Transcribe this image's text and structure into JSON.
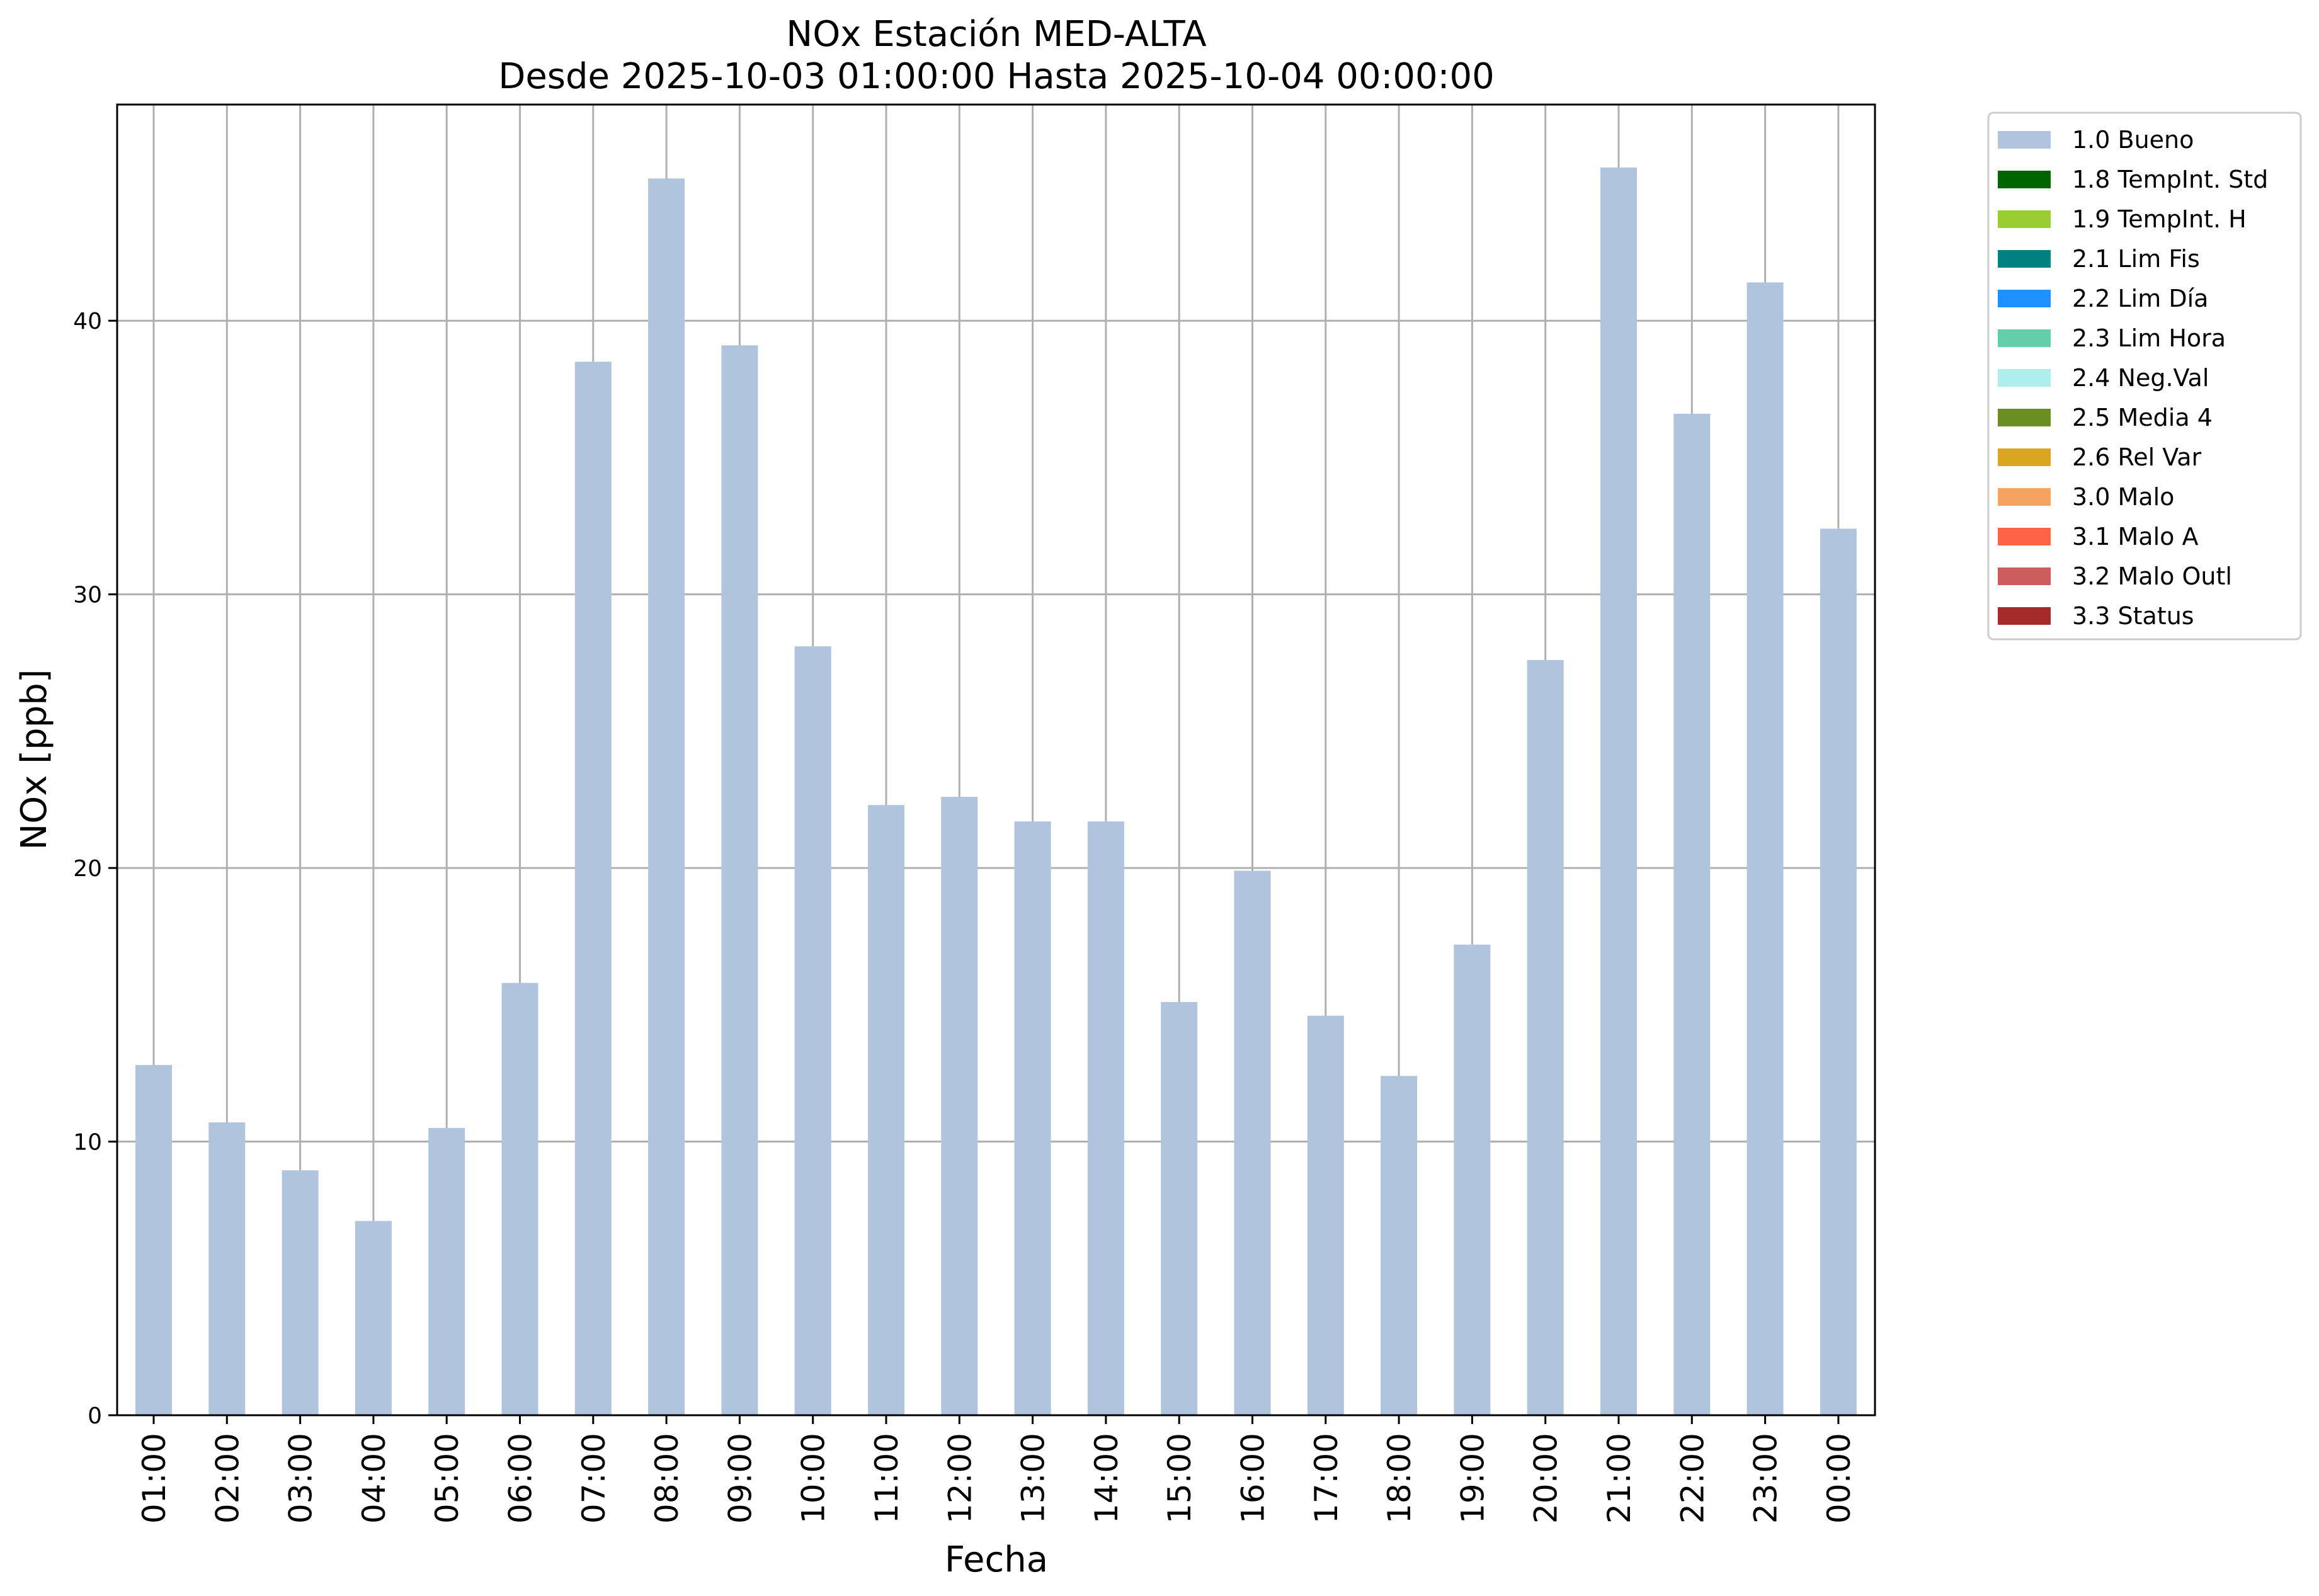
{
  "chart_data": {
    "type": "bar",
    "title": "NOx Estación MED-ALTA",
    "subtitle": "Desde 2025-10-03 01:00:00 Hasta 2025-10-04 00:00:00",
    "xlabel": "Fecha",
    "ylabel": "NOx [ppb]",
    "categories": [
      "01:00",
      "02:00",
      "03:00",
      "04:00",
      "05:00",
      "06:00",
      "07:00",
      "08:00",
      "09:00",
      "10:00",
      "11:00",
      "12:00",
      "13:00",
      "14:00",
      "15:00",
      "16:00",
      "17:00",
      "18:00",
      "19:00",
      "20:00",
      "21:00",
      "22:00",
      "23:00",
      "00:00"
    ],
    "series": [
      {
        "name": "1.0 Bueno",
        "color": "#b0c4de",
        "values": [
          12.8,
          10.7,
          8.95,
          7.1,
          10.5,
          15.8,
          38.5,
          45.2,
          39.1,
          28.1,
          22.3,
          22.6,
          21.7,
          21.7,
          15.1,
          19.9,
          14.6,
          12.4,
          17.2,
          27.6,
          45.6,
          36.6,
          41.4,
          32.4
        ]
      }
    ],
    "ylim": [
      0,
      47.9
    ],
    "yticks": [
      "0",
      "10",
      "20",
      "30",
      "40"
    ],
    "grid": true,
    "legend_placement": "outside top-right",
    "legend": [
      {
        "label": "1.0 Bueno",
        "color": "#b0c4de"
      },
      {
        "label": "1.8 TempInt. Std",
        "color": "#006400"
      },
      {
        "label": "1.9 TempInt. H",
        "color": "#9acd32"
      },
      {
        "label": "2.1 Lim Fis",
        "color": "#008080"
      },
      {
        "label": "2.2 Lim Día",
        "color": "#1e90ff"
      },
      {
        "label": "2.3 Lim Hora",
        "color": "#66cdaa"
      },
      {
        "label": "2.4 Neg.Val",
        "color": "#afeeee"
      },
      {
        "label": "2.5 Media 4",
        "color": "#6b8e23"
      },
      {
        "label": "2.6 Rel Var",
        "color": "#daa520"
      },
      {
        "label": "3.0 Malo",
        "color": "#f4a460"
      },
      {
        "label": "3.1 Malo A",
        "color": "#ff6347"
      },
      {
        "label": "3.2 Malo Outl",
        "color": "#cd5c5c"
      },
      {
        "label": "3.3 Status",
        "color": "#a52a2a"
      }
    ]
  }
}
